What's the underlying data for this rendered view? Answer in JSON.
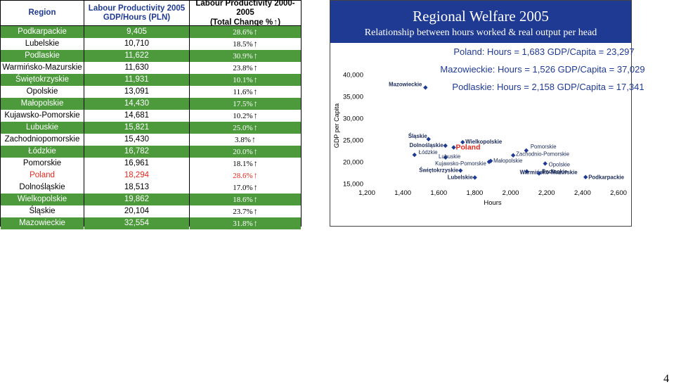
{
  "table": {
    "headers": {
      "region": "Region",
      "productivity_line1": "Labour Productivity 2005",
      "productivity_line2": "GDP/Hours (PLN)",
      "change_line1": "Labour Productivity 2000-2005",
      "change_line2": "(Total Change %",
      "change_line2_end": ")"
    },
    "rows": [
      {
        "region": "Podkarpackie",
        "productivity": "9,405",
        "change": "28.6%",
        "style": "green"
      },
      {
        "region": "Lubelskie",
        "productivity": "10,710",
        "change": "18.5%",
        "style": "white"
      },
      {
        "region": "Podlaskie",
        "productivity": "11,622",
        "change": "30.9%",
        "style": "green"
      },
      {
        "region": "Warmińsko-Mazurskie",
        "productivity": "11,630",
        "change": "23.8%",
        "style": "white"
      },
      {
        "region": "Świętokrzyskie",
        "productivity": "11,931",
        "change": "10.1%",
        "style": "green"
      },
      {
        "region": "Opolskie",
        "productivity": "13,091",
        "change": "11.6%",
        "style": "white"
      },
      {
        "region": "Małopolskie",
        "productivity": "14,430",
        "change": "17.5%",
        "style": "green"
      },
      {
        "region": "Kujawsko-Pomorskie",
        "productivity": "14,681",
        "change": "10.2%",
        "style": "white"
      },
      {
        "region": "Lubuskie",
        "productivity": "15,821",
        "change": "25.0%",
        "style": "green"
      },
      {
        "region": "Zachodniopomorskie",
        "productivity": "15,430",
        "change": "3.8%",
        "style": "white"
      },
      {
        "region": "Łódzkie",
        "productivity": "16,782",
        "change": "20.0%",
        "style": "green"
      },
      {
        "region": "Pomorskie",
        "productivity": "16,961",
        "change": "18.1%",
        "style": "white"
      },
      {
        "region": "Poland",
        "productivity": "18,294",
        "change": "28.6%",
        "style": "poland"
      },
      {
        "region": "Dolnośląskie",
        "productivity": "18,513",
        "change": "17.0%",
        "style": "white"
      },
      {
        "region": "Wielkopolskie",
        "productivity": "19,862",
        "change": "18.6%",
        "style": "green"
      },
      {
        "region": "Śląskie",
        "productivity": "20,104",
        "change": "23.7%",
        "style": "white"
      },
      {
        "region": "Mazowieckie",
        "productivity": "32,554",
        "change": "31.8%",
        "style": "green"
      }
    ],
    "arrow_icon": "up-arrow-icon"
  },
  "chart_header": {
    "title": "Regional Welfare 2005",
    "subtitle": "Relationship between hours worked & real output per head"
  },
  "annotations": [
    "Poland: Hours = 1,683 GDP/Capita = 23,297",
    "Mazowieckie: Hours = 1,526 GDP/Capita = 37,029",
    "Podlaskie: Hours = 2,158 GDP/Capita = 17,341"
  ],
  "page_number": "4",
  "colors": {
    "green": "#4c9a3c",
    "navy": "#1f3a93",
    "poland_red": "#e8281e",
    "marker": "#1f3a93"
  },
  "chart_data": {
    "type": "scatter",
    "title": "Regional Welfare 2005",
    "subtitle": "Relationship between hours worked & real output per head",
    "xlabel": "Hours",
    "ylabel": "GDP per Capita",
    "xlim": [
      1200,
      2600
    ],
    "ylim": [
      15000,
      40000
    ],
    "x_ticks": [
      "1,200",
      "1,400",
      "1,600",
      "1,800",
      "2,000",
      "2,200",
      "2,400",
      "2,600"
    ],
    "y_ticks": [
      "15,000",
      "20,000",
      "25,000",
      "30,000",
      "35,000",
      "40,000"
    ],
    "points": [
      {
        "name": "Mazowieckie",
        "x": 1526,
        "y": 37029
      },
      {
        "name": "Śląskie",
        "x": 1543,
        "y": 25200
      },
      {
        "name": "Dolnośląskie",
        "x": 1637,
        "y": 23700
      },
      {
        "name": "Wielkopolskie",
        "x": 1733,
        "y": 24500
      },
      {
        "name": "Poland",
        "x": 1683,
        "y": 23297
      },
      {
        "name": "Łódzkie",
        "x": 1465,
        "y": 21600
      },
      {
        "name": "Lubuskie",
        "x": 1638,
        "y": 21000
      },
      {
        "name": "Kujawsko-Pomorskie",
        "x": 1880,
        "y": 20000
      },
      {
        "name": "Małopolskie",
        "x": 1889,
        "y": 20200
      },
      {
        "name": "Pomorskie",
        "x": 2087,
        "y": 22600
      },
      {
        "name": "Zachodnio-Pomorskie",
        "x": 2014,
        "y": 21500
      },
      {
        "name": "Opolskie",
        "x": 2192,
        "y": 19600
      },
      {
        "name": "Świętokrzyskie",
        "x": 1721,
        "y": 18000
      },
      {
        "name": "Lubelskie",
        "x": 1801,
        "y": 16400
      },
      {
        "name": "Warmińsko-Mazurskie",
        "x": 2090,
        "y": 17800
      },
      {
        "name": "Podlaskie",
        "x": 2158,
        "y": 17341
      },
      {
        "name": "Podkarpackie",
        "x": 2417,
        "y": 16500
      }
    ]
  }
}
